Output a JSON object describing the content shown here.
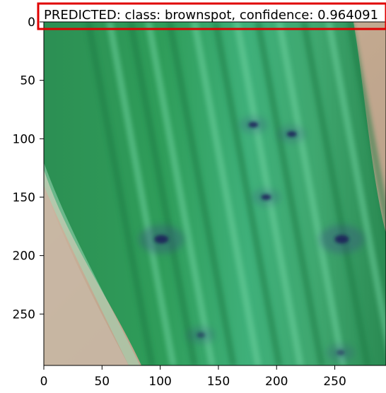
{
  "prediction": {
    "label": "PREDICTED: class: brownspot, confidence: 0.964091"
  },
  "axes": {
    "x_ticks": [
      "0",
      "50",
      "100",
      "150",
      "200",
      "250"
    ],
    "y_ticks": [
      "0",
      "50",
      "100",
      "150",
      "200",
      "250"
    ],
    "x_values": [
      0,
      50,
      100,
      150,
      200,
      250
    ],
    "y_values": [
      0,
      50,
      100,
      150,
      200,
      250
    ],
    "x_range": [
      0,
      294
    ],
    "y_range": [
      0,
      294
    ]
  },
  "colors": {
    "leaf_green": "#2f9d5a",
    "leaf_light": "#54c08a",
    "leaf_dark": "#1f7c45",
    "background_tan": "#c9b39b",
    "spot_dark": "#1a245a",
    "box_red": "#e00000"
  },
  "image": {
    "subject": "rice-leaf",
    "spots": [
      {
        "x": 180,
        "y": 88
      },
      {
        "x": 213,
        "y": 96
      },
      {
        "x": 191,
        "y": 150
      },
      {
        "x": 101,
        "y": 186
      },
      {
        "x": 256,
        "y": 186
      },
      {
        "x": 255,
        "y": 283
      },
      {
        "x": 135,
        "y": 268
      }
    ]
  }
}
